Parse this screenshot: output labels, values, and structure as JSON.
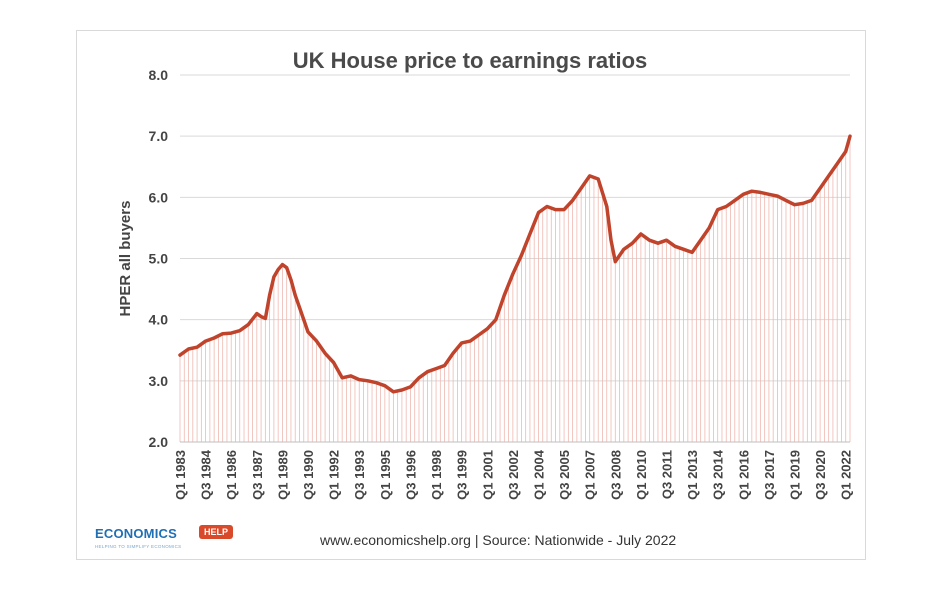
{
  "chart_data": {
    "type": "line",
    "title": "UK House price to earnings ratios",
    "xlabel": "",
    "ylabel": "HPER all buyers",
    "ylim": [
      2.0,
      8.0
    ],
    "yticks": [
      "2.0",
      "3.0",
      "4.0",
      "5.0",
      "6.0",
      "7.0",
      "8.0"
    ],
    "x_tick_labels": [
      "Q1 1983",
      "Q3 1984",
      "Q1 1986",
      "Q3 1987",
      "Q1 1989",
      "Q3 1990",
      "Q1 1992",
      "Q3 1993",
      "Q1 1995",
      "Q3 1996",
      "Q1 1998",
      "Q3 1999",
      "Q1 2001",
      "Q3 2002",
      "Q1 2004",
      "Q3 2005",
      "Q1 2007",
      "Q3 2008",
      "Q1 2010",
      "Q3 2011",
      "Q1 2013",
      "Q3 2014",
      "Q1 2016",
      "Q3 2017",
      "Q1 2019",
      "Q3 2020",
      "Q1 2022"
    ],
    "grid": true,
    "line_color": "#c0432b",
    "drop_line_color": "#f0b8b0",
    "series": [
      {
        "name": "",
        "points": [
          [
            "1983.0",
            3.42
          ],
          [
            "1983.5",
            3.52
          ],
          [
            "1984.0",
            3.55
          ],
          [
            "1984.5",
            3.65
          ],
          [
            "1985.0",
            3.7
          ],
          [
            "1985.5",
            3.77
          ],
          [
            "1986.0",
            3.78
          ],
          [
            "1986.5",
            3.82
          ],
          [
            "1987.0",
            3.92
          ],
          [
            "1987.5",
            4.1
          ],
          [
            "1987.75",
            4.05
          ],
          [
            "1988.0",
            4.02
          ],
          [
            "1988.25",
            4.4
          ],
          [
            "1988.5",
            4.7
          ],
          [
            "1988.75",
            4.82
          ],
          [
            "1989.0",
            4.9
          ],
          [
            "1989.25",
            4.85
          ],
          [
            "1989.5",
            4.65
          ],
          [
            "1989.75",
            4.4
          ],
          [
            "1990.0",
            4.2
          ],
          [
            "1990.5",
            3.8
          ],
          [
            "1991.0",
            3.65
          ],
          [
            "1991.5",
            3.45
          ],
          [
            "1992.0",
            3.3
          ],
          [
            "1992.5",
            3.05
          ],
          [
            "1993.0",
            3.08
          ],
          [
            "1993.5",
            3.02
          ],
          [
            "1994.0",
            3.0
          ],
          [
            "1994.5",
            2.97
          ],
          [
            "1995.0",
            2.92
          ],
          [
            "1995.5",
            2.82
          ],
          [
            "1996.0",
            2.85
          ],
          [
            "1996.5",
            2.9
          ],
          [
            "1997.0",
            3.05
          ],
          [
            "1997.5",
            3.15
          ],
          [
            "1998.0",
            3.2
          ],
          [
            "1998.5",
            3.25
          ],
          [
            "1999.0",
            3.45
          ],
          [
            "1999.5",
            3.62
          ],
          [
            "2000.0",
            3.65
          ],
          [
            "2000.5",
            3.75
          ],
          [
            "2001.0",
            3.85
          ],
          [
            "2001.5",
            4.0
          ],
          [
            "2002.0",
            4.4
          ],
          [
            "2002.5",
            4.75
          ],
          [
            "2003.0",
            5.05
          ],
          [
            "2003.5",
            5.4
          ],
          [
            "2004.0",
            5.75
          ],
          [
            "2004.5",
            5.85
          ],
          [
            "2005.0",
            5.8
          ],
          [
            "2005.5",
            5.8
          ],
          [
            "2006.0",
            5.95
          ],
          [
            "2006.5",
            6.15
          ],
          [
            "2007.0",
            6.35
          ],
          [
            "2007.5",
            6.3
          ],
          [
            "2008.0",
            5.85
          ],
          [
            "2008.25",
            5.3
          ],
          [
            "2008.5",
            4.95
          ],
          [
            "2008.75",
            5.05
          ],
          [
            "2009.0",
            5.15
          ],
          [
            "2009.5",
            5.25
          ],
          [
            "2010.0",
            5.4
          ],
          [
            "2010.5",
            5.3
          ],
          [
            "2011.0",
            5.25
          ],
          [
            "2011.5",
            5.3
          ],
          [
            "2012.0",
            5.2
          ],
          [
            "2012.5",
            5.15
          ],
          [
            "2013.0",
            5.1
          ],
          [
            "2013.5",
            5.3
          ],
          [
            "2014.0",
            5.5
          ],
          [
            "2014.5",
            5.8
          ],
          [
            "2015.0",
            5.85
          ],
          [
            "2015.5",
            5.95
          ],
          [
            "2016.0",
            6.05
          ],
          [
            "2016.5",
            6.1
          ],
          [
            "2017.0",
            6.08
          ],
          [
            "2017.5",
            6.05
          ],
          [
            "2018.0",
            6.02
          ],
          [
            "2018.5",
            5.95
          ],
          [
            "2019.0",
            5.88
          ],
          [
            "2019.5",
            5.9
          ],
          [
            "2020.0",
            5.95
          ],
          [
            "2020.5",
            6.15
          ],
          [
            "2021.0",
            6.35
          ],
          [
            "2021.5",
            6.55
          ],
          [
            "2022.0",
            6.75
          ],
          [
            "2022.25",
            7.0
          ]
        ]
      }
    ]
  },
  "footer": {
    "text": "www.economicshelp.org  | Source: Nationwide - July 2022"
  },
  "logo": {
    "word": "ECONOMICS",
    "badge": "HELP",
    "tagline": "HELPING TO SIMPLIFY ECONOMICS"
  }
}
